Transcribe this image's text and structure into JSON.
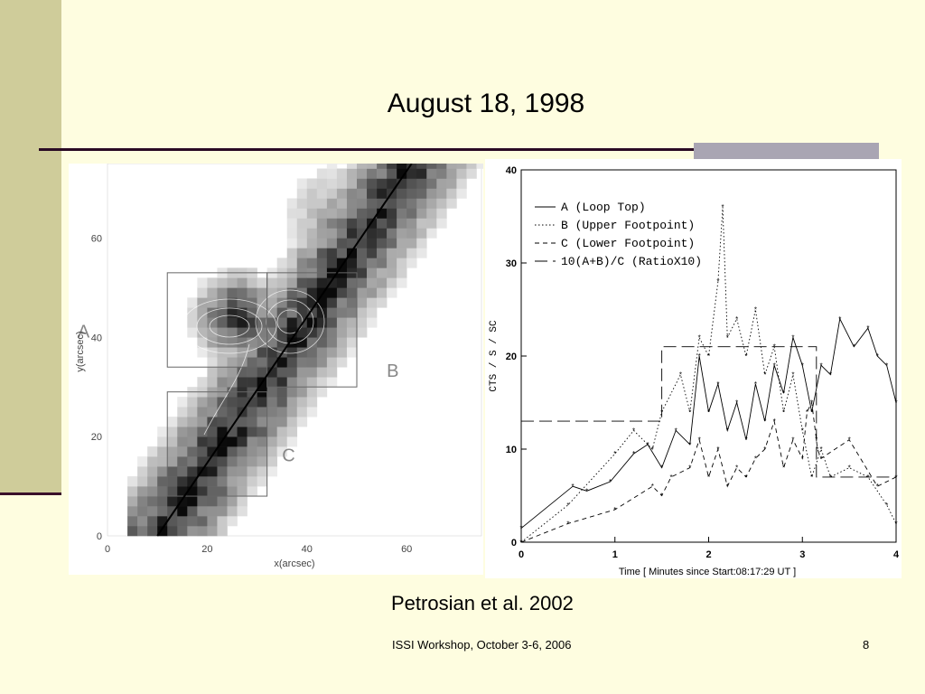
{
  "title": "August 18, 1998",
  "caption": "Petrosian et al. 2002",
  "footer": {
    "text": "ISSI Workshop, October 3-6, 2006",
    "page": "8"
  },
  "chart_data": [
    {
      "type": "heatmap",
      "xlabel": "x(arcsec)",
      "ylabel": "y(arcsec)",
      "xlim": [
        0,
        75
      ],
      "ylim": [
        0,
        75
      ],
      "x_ticks": [
        "0",
        "20",
        "40",
        "60"
      ],
      "y_ticks": [
        "0",
        "20",
        "40",
        "60"
      ],
      "annotations": [
        "A",
        "B",
        "C"
      ],
      "regions": [
        {
          "label": "A",
          "x": [
            12,
            32
          ],
          "y": [
            34,
            53
          ]
        },
        {
          "label": "B",
          "x": [
            32,
            50
          ],
          "y": [
            30,
            53
          ]
        },
        {
          "label": "C",
          "x": [
            12,
            32
          ],
          "y": [
            8,
            29
          ]
        }
      ],
      "line": {
        "from": [
          10,
          0
        ],
        "to": [
          61,
          75
        ]
      }
    },
    {
      "type": "line",
      "xlabel": "Time [ Minutes since Start:08:17:29 UT ]",
      "ylabel": "CTS / S / SC",
      "xlim": [
        0,
        4
      ],
      "ylim": [
        0,
        40
      ],
      "x_ticks": [
        "0",
        "1",
        "2",
        "3",
        "4"
      ],
      "y_ticks": [
        "0",
        "10",
        "20",
        "30",
        "40"
      ],
      "series": [
        {
          "name": "A (Loop Top)",
          "style": "solid",
          "x": [
            0,
            0.55,
            0.7,
            0.95,
            1.2,
            1.35,
            1.5,
            1.65,
            1.8,
            1.9,
            2.0,
            2.1,
            2.2,
            2.3,
            2.4,
            2.5,
            2.6,
            2.7,
            2.8,
            2.9,
            3.0,
            3.1,
            3.2,
            3.3,
            3.4,
            3.55,
            3.7,
            3.8,
            3.9,
            4.0
          ],
          "values": [
            1.5,
            6,
            5.5,
            6.5,
            9.5,
            10.5,
            8,
            12,
            10.5,
            20,
            14,
            17,
            12,
            15,
            11,
            17,
            13,
            19,
            16,
            22,
            19,
            14,
            19,
            18,
            24,
            21,
            23,
            20,
            19,
            15
          ]
        },
        {
          "name": "B (Upper Footpoint)",
          "style": "dotted",
          "x": [
            0,
            0.5,
            1.0,
            1.2,
            1.4,
            1.5,
            1.7,
            1.8,
            1.9,
            2.0,
            2.1,
            2.15,
            2.2,
            2.3,
            2.4,
            2.5,
            2.6,
            2.7,
            2.8,
            2.9,
            3.0,
            3.1,
            3.2,
            3.3,
            3.5,
            3.7,
            3.9,
            4.0
          ],
          "values": [
            0,
            4,
            9.5,
            12,
            10,
            14,
            18,
            14,
            22,
            20,
            28,
            36,
            22,
            24,
            20,
            25,
            18,
            21,
            14,
            18,
            12,
            7,
            10,
            7,
            8,
            7,
            4,
            2
          ]
        },
        {
          "name": "C (Lower Footpoint)",
          "style": "dashed",
          "x": [
            0,
            0.5,
            1.0,
            1.4,
            1.5,
            1.6,
            1.8,
            1.9,
            2.0,
            2.1,
            2.2,
            2.3,
            2.4,
            2.5,
            2.6,
            2.7,
            2.8,
            2.9,
            3.0,
            3.05,
            3.1,
            3.15,
            3.16,
            3.2,
            3.5,
            3.8,
            4.0
          ],
          "values": [
            0,
            2,
            3.5,
            6,
            5,
            7,
            8,
            11,
            7,
            10,
            6,
            8,
            7,
            9,
            10,
            13,
            8,
            11,
            9,
            14,
            15,
            11,
            10,
            9,
            11,
            6,
            7
          ]
        },
        {
          "name": "10(A+B)/C (RatioX10)",
          "style": "long-dash",
          "x": [
            0,
            1.5,
            1.5,
            3.15,
            3.15,
            4.0
          ],
          "values": [
            13,
            13,
            21,
            21,
            7,
            7
          ]
        }
      ]
    }
  ]
}
